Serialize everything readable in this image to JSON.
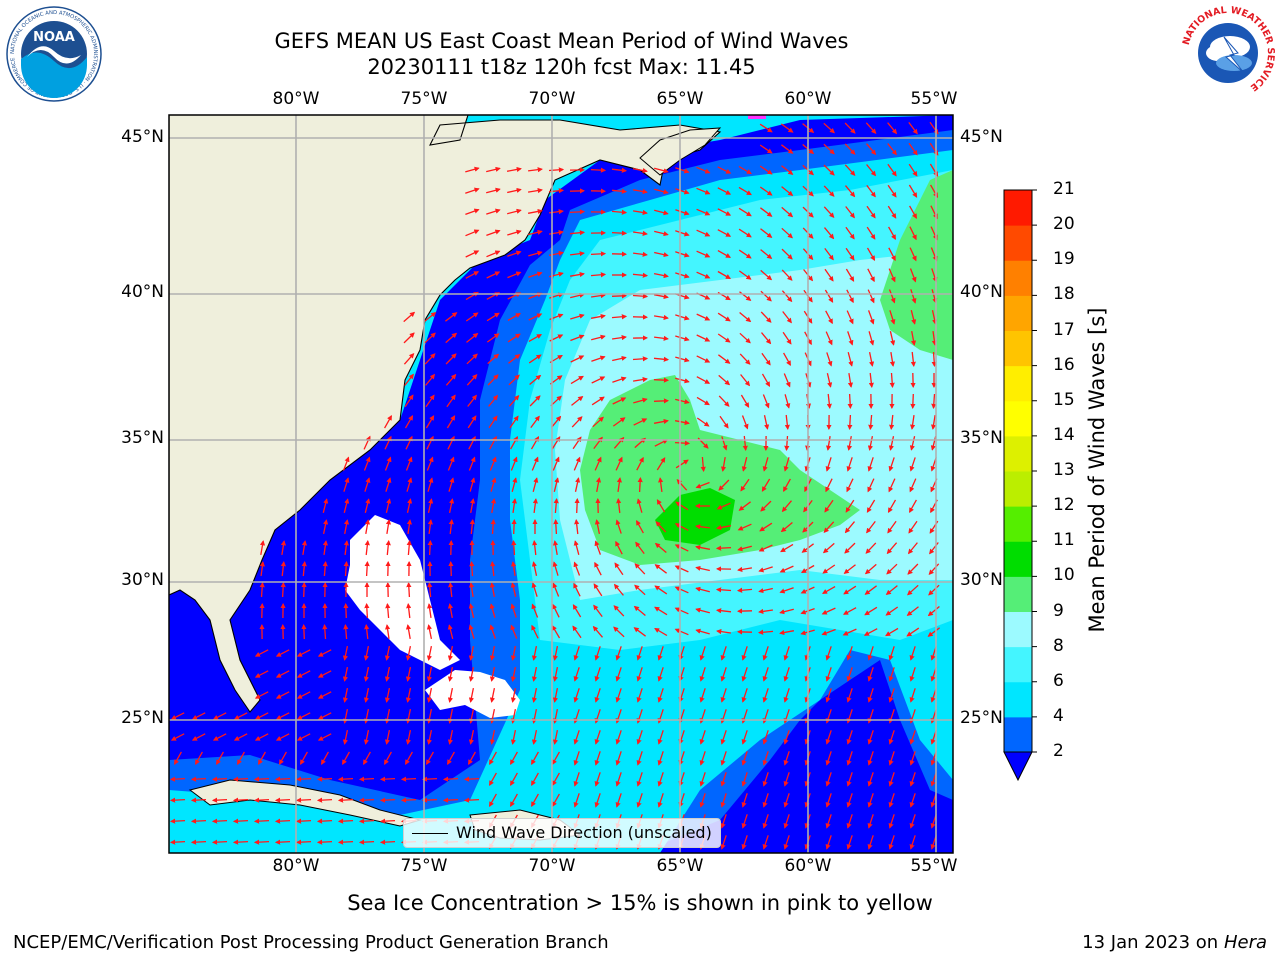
{
  "header": {
    "title_line1": "GEFS MEAN US East Coast Mean Period of Wind Waves",
    "title_line2": "20230111 t18z 120h fcst   Max: 11.45"
  },
  "logos": {
    "left": {
      "name": "noaa-logo",
      "text": "NOAA",
      "ring_text": "NATIONAL OCEANIC AND ATMOSPHERIC ADMINISTRATION · U.S. DEPARTMENT OF COMMERCE",
      "color": "#1d4f91"
    },
    "right": {
      "name": "nws-logo",
      "ring_text": "NATIONAL WEATHER SERVICE",
      "color": "#e31b23"
    }
  },
  "map": {
    "lon_labels": [
      "80°W",
      "75°W",
      "70°W",
      "65°W",
      "60°W",
      "55°W"
    ],
    "lat_labels": [
      "45°N",
      "40°N",
      "35°N",
      "30°N",
      "25°N"
    ],
    "land_color": "#efefdc",
    "arrow_color": "#ff1a1a"
  },
  "legend": {
    "label": "Wind Wave Direction (unscaled)"
  },
  "colorbar": {
    "label": "Mean Period of Wind Waves [s]",
    "ticks": [
      "2",
      "4",
      "6",
      "8",
      "9",
      "10",
      "11",
      "12",
      "13",
      "14",
      "15",
      "16",
      "17",
      "18",
      "19",
      "20",
      "21"
    ],
    "colors": [
      "#0066ff",
      "#00e6ff",
      "#44f5ff",
      "#9cfaff",
      "#55ee77",
      "#00dd00",
      "#55ee00",
      "#bbee00",
      "#ddf000",
      "#ffff00",
      "#ffee00",
      "#ffc400",
      "#ffa500",
      "#ff8000",
      "#ff4a00",
      "#ff1a00"
    ],
    "under_color": "#0000ff"
  },
  "caption": "Sea Ice Concentration > 15% is shown in pink to yellow",
  "footer": {
    "left": "NCEP/EMC/Verification Post Processing Product Generation Branch",
    "right_prefix": "13 Jan 2023 on ",
    "right_host": "Hera"
  }
}
